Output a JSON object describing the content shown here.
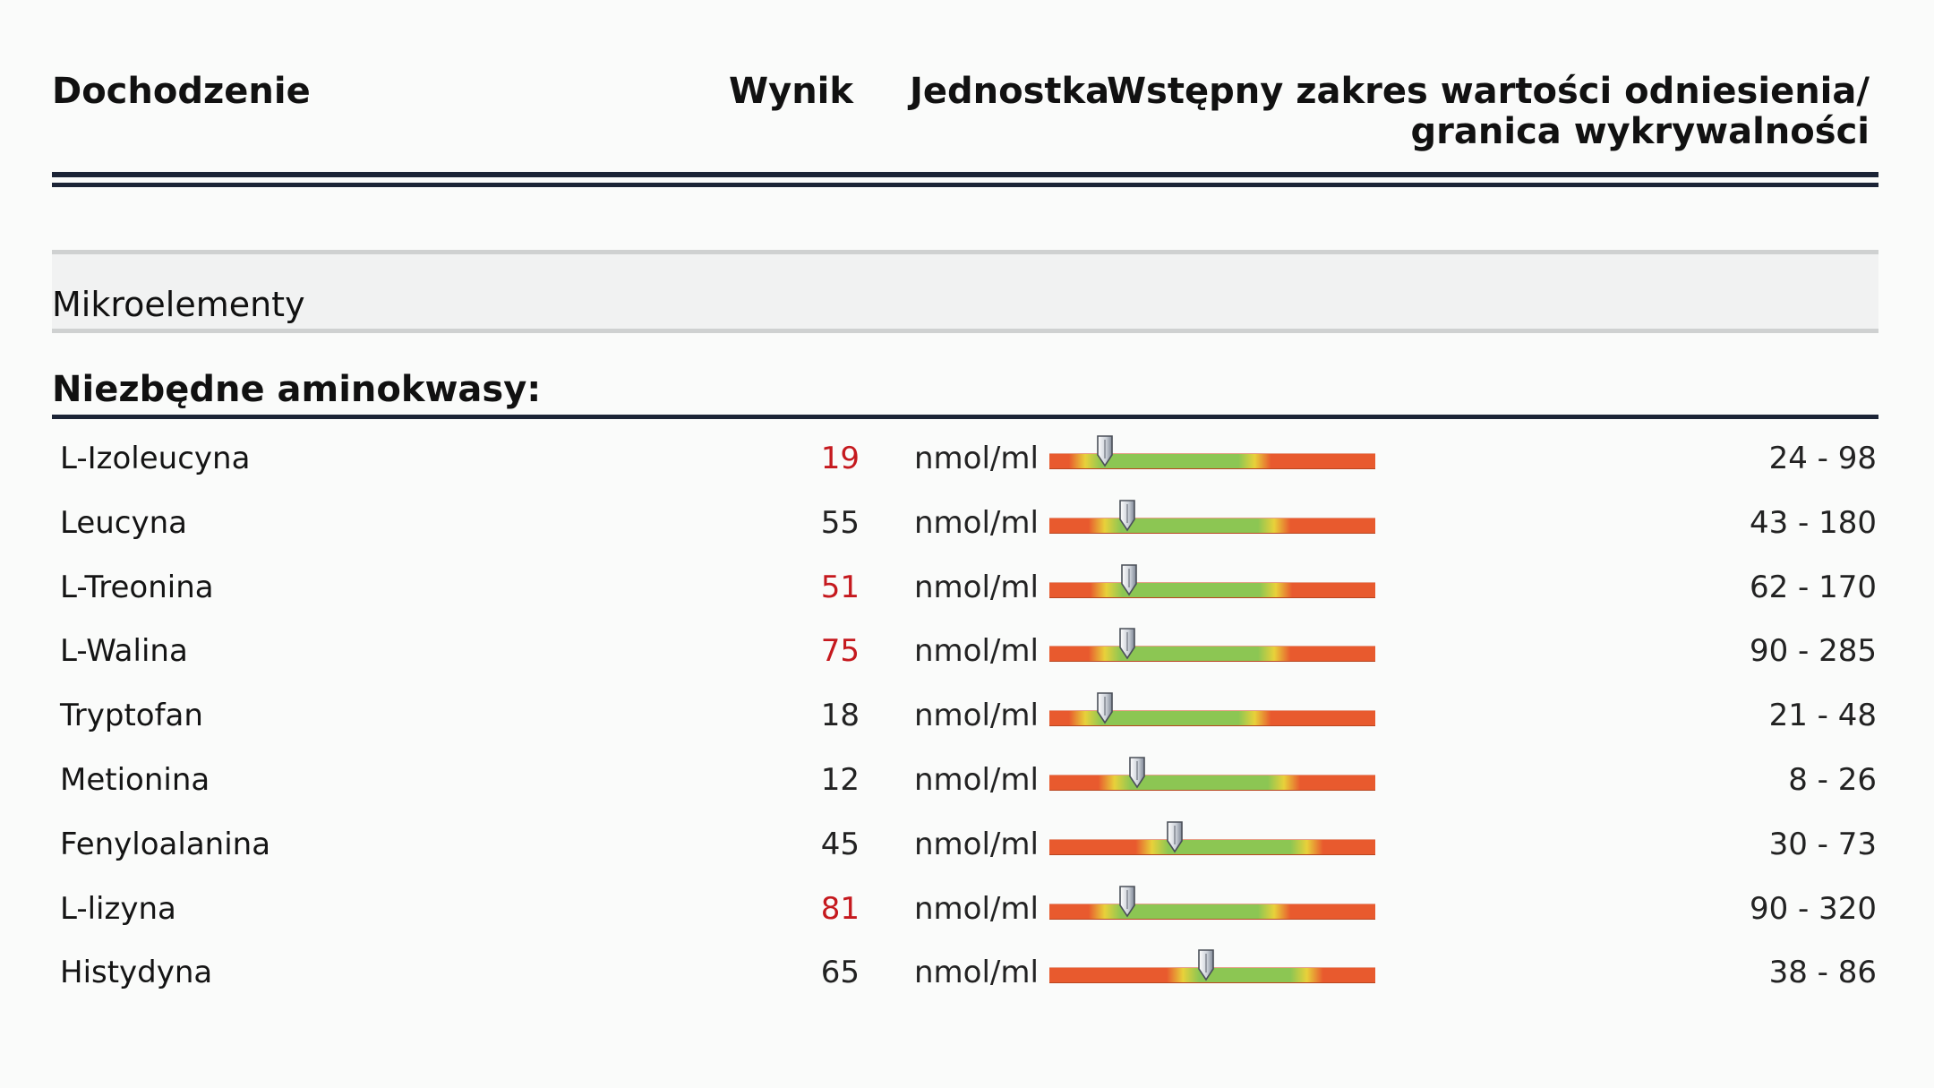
{
  "header": {
    "investigation": "Dochodzenie",
    "result": "Wynik",
    "unit": "Jednostka",
    "reference_line1": "Wstępny zakres wartości odniesienia/",
    "reference_line2": "granica wykrywalności"
  },
  "section": {
    "title": "Mikroelementy"
  },
  "group": {
    "title": "Niezbędne aminokwasy:",
    "rows": [
      {
        "name": "L-Izoleucyna",
        "value": "19",
        "unit": "nmol/ml",
        "range": "24 - 98",
        "flag": true,
        "marker": 0.17
      },
      {
        "name": "Leucyna",
        "value": "55",
        "unit": "nmol/ml",
        "range": "43 - 180",
        "flag": false,
        "marker": 0.24
      },
      {
        "name": "L-Treonina",
        "value": "51",
        "unit": "nmol/ml",
        "range": "62 - 170",
        "flag": true,
        "marker": 0.245
      },
      {
        "name": "L-Walina",
        "value": "75",
        "unit": "nmol/ml",
        "range": "90 - 285",
        "flag": true,
        "marker": 0.24
      },
      {
        "name": "Tryptofan",
        "value": "18",
        "unit": "nmol/ml",
        "range": "21 - 48",
        "flag": false,
        "marker": 0.17
      },
      {
        "name": "Metionina",
        "value": "12",
        "unit": "nmol/ml",
        "range": "8 - 26",
        "flag": false,
        "marker": 0.27
      },
      {
        "name": "Fenyloalanina",
        "value": "45",
        "unit": "nmol/ml",
        "range": "30 - 73",
        "flag": false,
        "marker": 0.385
      },
      {
        "name": "L-lizyna",
        "value": "81",
        "unit": "nmol/ml",
        "range": "90 - 320",
        "flag": true,
        "marker": 0.24
      },
      {
        "name": "Histydyna",
        "value": "65",
        "unit": "nmol/ml",
        "range": "38 - 86",
        "flag": false,
        "marker": 0.48
      }
    ]
  },
  "colors": {
    "rule": "#1b2436",
    "flag": "#c5191e",
    "gauge_red": "#e85a2e",
    "gauge_yellow": "#e8d13a",
    "gauge_green": "#8cc653"
  }
}
